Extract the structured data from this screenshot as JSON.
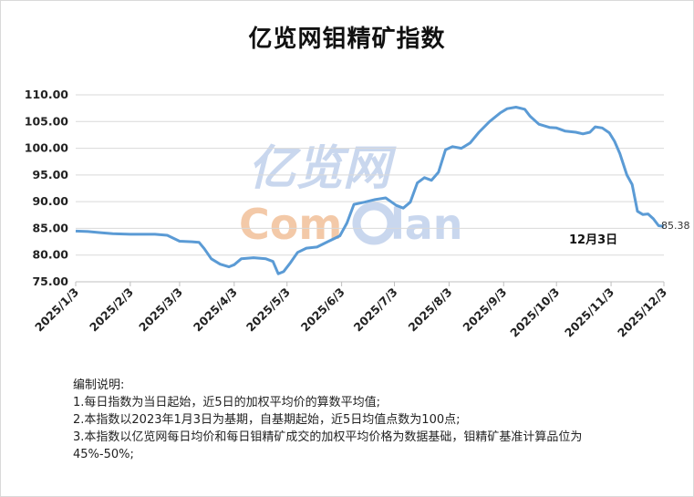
{
  "title": "亿览网钼精矿指数",
  "watermark": {
    "line1": "亿览网",
    "line2a": "Com",
    "line2b": "lan"
  },
  "chart_data": {
    "type": "line",
    "title": "亿览网钼精矿指数",
    "xlabel": "",
    "ylabel": "",
    "ylim": [
      75,
      110
    ],
    "yticks": [
      "75.00",
      "80.00",
      "85.00",
      "90.00",
      "95.00",
      "100.00",
      "105.00",
      "110.00"
    ],
    "xticks": [
      "2025/1/3",
      "2025/2/3",
      "2025/3/3",
      "2025/4/3",
      "2025/5/3",
      "2025/6/3",
      "2025/7/3",
      "2025/8/3",
      "2025/9/3",
      "2025/10/3",
      "2025/11/3",
      "2025/12/3"
    ],
    "grid": "horizontal",
    "line_color": "#5b9bd5",
    "series": [
      {
        "points": [
          [
            "2025-01-03",
            84.5
          ],
          [
            "2025-01-10",
            84.4
          ],
          [
            "2025-01-17",
            84.2
          ],
          [
            "2025-01-24",
            84.0
          ],
          [
            "2025-02-03",
            83.9
          ],
          [
            "2025-02-10",
            83.9
          ],
          [
            "2025-02-17",
            83.9
          ],
          [
            "2025-02-24",
            83.7
          ],
          [
            "2025-03-03",
            82.6
          ],
          [
            "2025-03-10",
            82.5
          ],
          [
            "2025-03-14",
            82.4
          ],
          [
            "2025-03-17",
            81.2
          ],
          [
            "2025-03-21",
            79.3
          ],
          [
            "2025-03-26",
            78.3
          ],
          [
            "2025-03-31",
            77.8
          ],
          [
            "2025-04-03",
            78.2
          ],
          [
            "2025-04-07",
            79.3
          ],
          [
            "2025-04-14",
            79.5
          ],
          [
            "2025-04-21",
            79.3
          ],
          [
            "2025-04-25",
            78.8
          ],
          [
            "2025-04-28",
            76.5
          ],
          [
            "2025-05-01",
            76.9
          ],
          [
            "2025-05-05",
            78.6
          ],
          [
            "2025-05-09",
            80.5
          ],
          [
            "2025-05-14",
            81.3
          ],
          [
            "2025-05-20",
            81.5
          ],
          [
            "2025-05-26",
            82.5
          ],
          [
            "2025-06-02",
            83.6
          ],
          [
            "2025-06-06",
            86.0
          ],
          [
            "2025-06-10",
            89.5
          ],
          [
            "2025-06-16",
            89.9
          ],
          [
            "2025-06-22",
            90.4
          ],
          [
            "2025-06-28",
            90.7
          ],
          [
            "2025-07-04",
            89.3
          ],
          [
            "2025-07-08",
            88.8
          ],
          [
            "2025-07-12",
            89.9
          ],
          [
            "2025-07-16",
            93.5
          ],
          [
            "2025-07-20",
            94.5
          ],
          [
            "2025-07-24",
            94.0
          ],
          [
            "2025-07-28",
            95.5
          ],
          [
            "2025-08-01",
            99.7
          ],
          [
            "2025-08-05",
            100.3
          ],
          [
            "2025-08-10",
            100.0
          ],
          [
            "2025-08-15",
            101.0
          ],
          [
            "2025-08-20",
            103.0
          ],
          [
            "2025-08-26",
            105.0
          ],
          [
            "2025-09-01",
            106.6
          ],
          [
            "2025-09-05",
            107.4
          ],
          [
            "2025-09-10",
            107.7
          ],
          [
            "2025-09-15",
            107.3
          ],
          [
            "2025-09-18",
            106.0
          ],
          [
            "2025-09-23",
            104.5
          ],
          [
            "2025-09-29",
            103.9
          ],
          [
            "2025-10-03",
            103.8
          ],
          [
            "2025-10-08",
            103.2
          ],
          [
            "2025-10-14",
            103.0
          ],
          [
            "2025-10-18",
            102.7
          ],
          [
            "2025-10-22",
            103.0
          ],
          [
            "2025-10-25",
            104.0
          ],
          [
            "2025-10-29",
            103.8
          ],
          [
            "2025-11-02",
            102.9
          ],
          [
            "2025-11-05",
            101.3
          ],
          [
            "2025-11-08",
            99.0
          ],
          [
            "2025-11-12",
            95.0
          ],
          [
            "2025-11-15",
            93.2
          ],
          [
            "2025-11-18",
            88.2
          ],
          [
            "2025-11-21",
            87.6
          ],
          [
            "2025-11-24",
            87.7
          ],
          [
            "2025-11-27",
            86.8
          ],
          [
            "2025-11-30",
            85.5
          ],
          [
            "2025-12-03",
            85.38
          ]
        ]
      }
    ],
    "annotations": [
      {
        "text": "85.38",
        "x": "2025-12-03",
        "y": 85.38
      },
      {
        "text": "12月3日",
        "x": "2025-12-03",
        "y": 85.38
      }
    ]
  },
  "notes": {
    "heading": "编制说明:",
    "line1": "1.每日指数为当日起始，近5日的加权平均价的算数平均值;",
    "line2": "2.本指数以2023年1月3日为基期，自基期起始，近5日均值点数为100点;",
    "line3": "3.本指数以亿览网每日均价和每日钼精矿成交的加权平均价格为数据基础，钼精矿基准计算品位为45%-50%;"
  }
}
